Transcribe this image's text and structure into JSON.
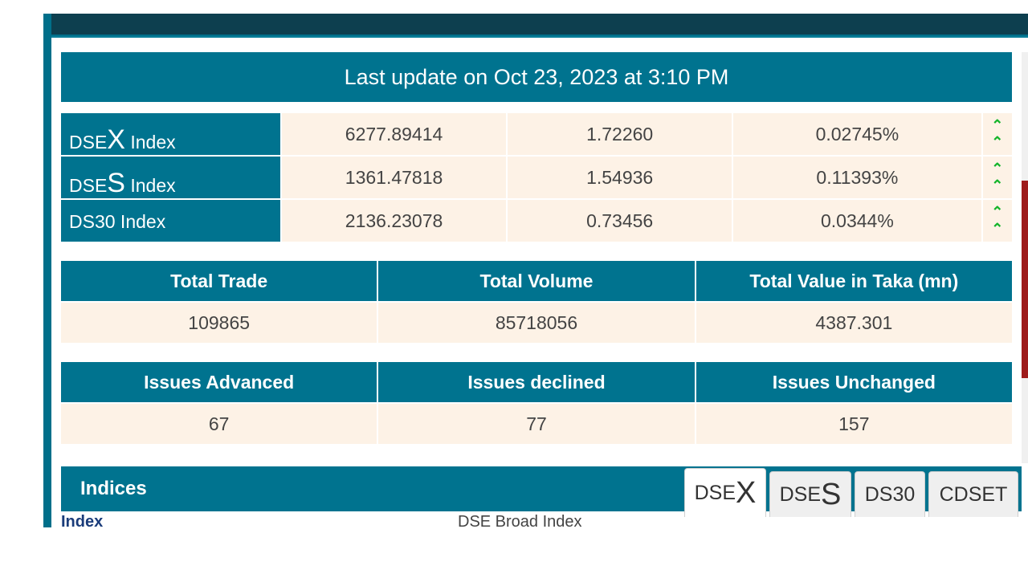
{
  "update": {
    "text": "Last update on Oct 23, 2023 at 3:10 PM"
  },
  "indexes": [
    {
      "prefix": "DSE",
      "letter": "X",
      "suffix": " Index",
      "value": "6277.89414",
      "change": "1.72260",
      "percent": "0.02745%"
    },
    {
      "prefix": "DSE",
      "letter": "S",
      "suffix": " Index",
      "value": "1361.47818",
      "change": "1.54936",
      "percent": "0.11393%"
    },
    {
      "prefix": "DS30 Index",
      "letter": "",
      "suffix": "",
      "value": "2136.23078",
      "change": "0.73456",
      "percent": "0.0344%"
    }
  ],
  "up_arrow_icon": "double-chevron-up-icon",
  "totals": {
    "headers": [
      "Total Trade",
      "Total Volume",
      "Total Value in Taka (mn)"
    ],
    "values": [
      "109865",
      "85718056",
      "4387.301"
    ]
  },
  "issues": {
    "headers": [
      "Issues Advanced",
      "Issues declined",
      "Issues Unchanged"
    ],
    "values": [
      "67",
      "77",
      "157"
    ]
  },
  "indices": {
    "title": "Indices",
    "tabs": [
      {
        "prefix": "DSE",
        "letter": "X"
      },
      {
        "prefix": "DSE",
        "letter": "S"
      },
      {
        "prefix": "DS30",
        "letter": ""
      },
      {
        "prefix": "CDSET",
        "letter": ""
      }
    ],
    "row_label": "Index",
    "row_value": "DSE Broad Index"
  },
  "colors": {
    "teal": "#00738f",
    "cream": "#fdf2e6",
    "arrow_green": "#13b42a"
  }
}
